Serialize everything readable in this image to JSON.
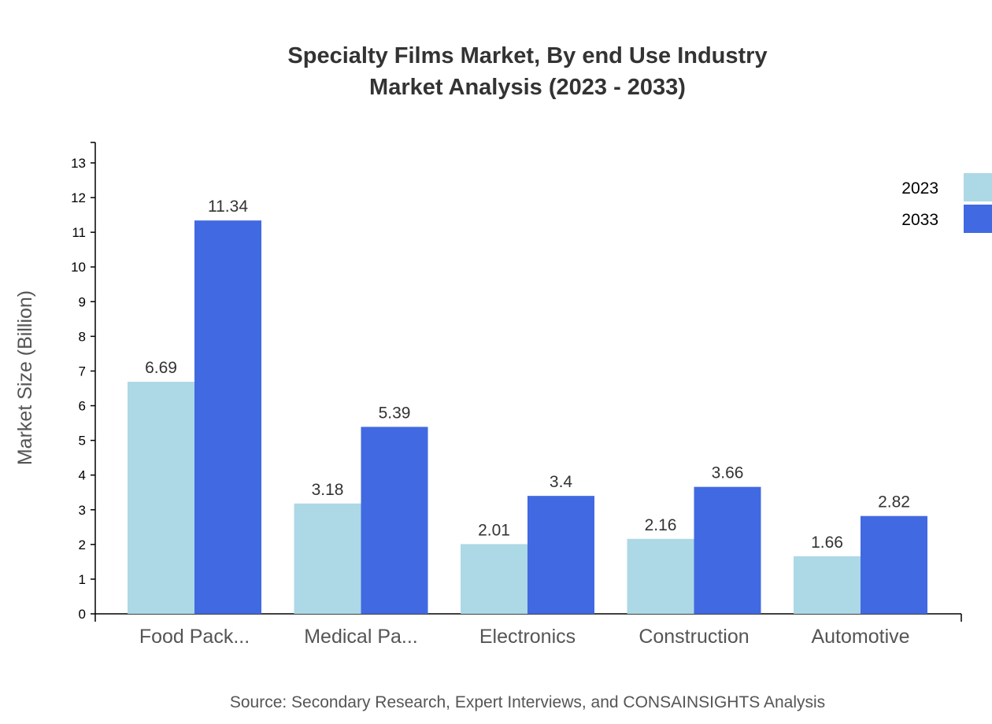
{
  "chart_data": {
    "type": "bar",
    "title": [
      "Specialty Films Market, By end Use Industry",
      "Market Analysis (2023 - 2033)"
    ],
    "xlabel": "",
    "ylabel": "Market Size (Billion)",
    "ylim": [
      0,
      13.5
    ],
    "yticks": [
      0,
      1,
      2,
      3,
      4,
      5,
      6,
      7,
      8,
      9,
      10,
      11,
      12,
      13
    ],
    "categories": [
      "Food Pack...",
      "Medical Pa...",
      "Electronics",
      "Construction",
      "Automotive"
    ],
    "series": [
      {
        "name": "2023",
        "color": "#ADD8E6",
        "values": [
          6.69,
          3.18,
          2.01,
          2.16,
          1.66
        ]
      },
      {
        "name": "2033",
        "color": "#4169E1",
        "values": [
          11.34,
          5.39,
          3.4,
          3.66,
          2.82
        ]
      }
    ],
    "grid": false,
    "legend_position": "top-right",
    "source": "Source: Secondary Research, Expert Interviews, and CONSAINSIGHTS Analysis"
  }
}
